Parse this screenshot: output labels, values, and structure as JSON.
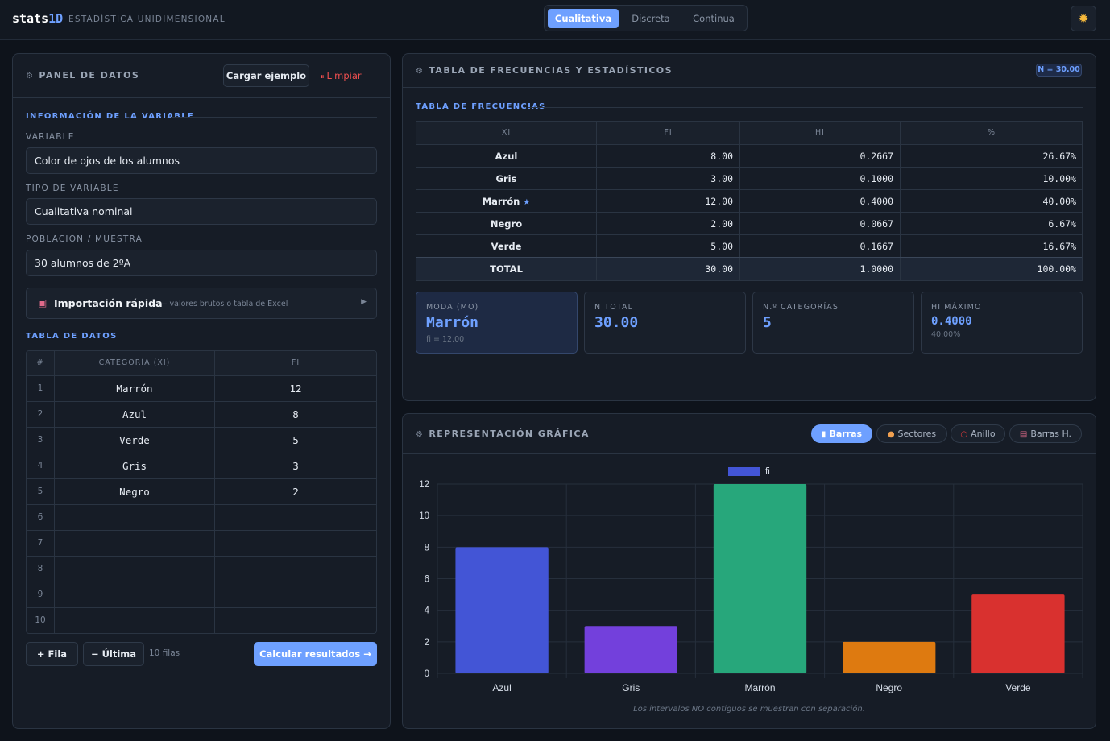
{
  "header": {
    "brand_a": "stats",
    "brand_b": "1D",
    "subtitle": "ESTADÍSTICA UNIDIMENSIONAL",
    "modes": [
      "Cualitativa",
      "Discreta",
      "Continua"
    ],
    "active_mode": "Cualitativa",
    "theme_icon": "sun-icon"
  },
  "left": {
    "title": "PANEL DE DATOS",
    "load_example": "Cargar ejemplo",
    "clear": "Limpiar",
    "section_info": "INFORMACIÓN DE LA VARIABLE",
    "variable_label": "VARIABLE",
    "variable_value": "Color de ojos de los alumnos",
    "type_label": "TIPO DE VARIABLE",
    "type_value": "Cualitativa nominal",
    "pop_label": "POBLACIÓN / MUESTRA",
    "pop_value": "30 alumnos de 2ºA",
    "quick_title": "Importación rápida",
    "quick_hint": "— valores brutos o tabla de Excel",
    "section_table": "TABLA DE DATOS",
    "table_headers": [
      "#",
      "CATEGORÍA (XI)",
      "FI"
    ],
    "rows": [
      {
        "n": "1",
        "cat": "Marrón",
        "fi": "12"
      },
      {
        "n": "2",
        "cat": "Azul",
        "fi": "8"
      },
      {
        "n": "3",
        "cat": "Verde",
        "fi": "5"
      },
      {
        "n": "4",
        "cat": "Gris",
        "fi": "3"
      },
      {
        "n": "5",
        "cat": "Negro",
        "fi": "2"
      },
      {
        "n": "6",
        "cat": "",
        "fi": ""
      },
      {
        "n": "7",
        "cat": "",
        "fi": ""
      },
      {
        "n": "8",
        "cat": "",
        "fi": ""
      },
      {
        "n": "9",
        "cat": "",
        "fi": ""
      },
      {
        "n": "10",
        "cat": "",
        "fi": ""
      }
    ],
    "add_row": "+ Fila",
    "remove_last": "− Última",
    "row_count": "10 filas",
    "calculate": "Calcular resultados →"
  },
  "freq": {
    "title": "TABLA DE FRECUENCIAS Y ESTADÍSTICOS",
    "n_badge": "N = 30.00",
    "section": "TABLA DE FRECUENCIAS",
    "headers": [
      "XI",
      "FI",
      "HI",
      "%"
    ],
    "rows": [
      {
        "xi": "Azul",
        "fi": "8.00",
        "hi": "0.2667",
        "pct": "26.67%",
        "mode": false
      },
      {
        "xi": "Gris",
        "fi": "3.00",
        "hi": "0.1000",
        "pct": "10.00%",
        "mode": false
      },
      {
        "xi": "Marrón",
        "fi": "12.00",
        "hi": "0.4000",
        "pct": "40.00%",
        "mode": true
      },
      {
        "xi": "Negro",
        "fi": "2.00",
        "hi": "0.0667",
        "pct": "6.67%",
        "mode": false
      },
      {
        "xi": "Verde",
        "fi": "5.00",
        "hi": "0.1667",
        "pct": "16.67%",
        "mode": false
      }
    ],
    "total": {
      "xi": "TOTAL",
      "fi": "30.00",
      "hi": "1.0000",
      "pct": "100.00%"
    },
    "cards": [
      {
        "label": "MODA (MO)",
        "value": "Marrón",
        "sub": "fi = 12.00"
      },
      {
        "label": "N TOTAL",
        "value": "30.00",
        "sub": ""
      },
      {
        "label": "N.º CATEGORÍAS",
        "value": "5",
        "sub": ""
      },
      {
        "label": "HI MÁXIMO",
        "value": "0.4000",
        "sub": "40.00%"
      }
    ]
  },
  "graph": {
    "title": "REPRESENTACIÓN GRÁFICA",
    "tabs": [
      "Barras",
      "Sectores",
      "Anillo",
      "Barras H."
    ],
    "active_tab": "Barras",
    "note": "Los intervalos NO contiguos se muestran con separación."
  },
  "chart_data": {
    "type": "bar",
    "categories": [
      "Azul",
      "Gris",
      "Marrón",
      "Negro",
      "Verde"
    ],
    "series": [
      {
        "name": "fi",
        "values": [
          8,
          3,
          12,
          2,
          5
        ]
      }
    ],
    "colors": [
      "#4355d6",
      "#7340dc",
      "#27a77b",
      "#de7a10",
      "#d9312f"
    ],
    "legend_color": "#4355d6",
    "ylim": [
      0,
      12
    ],
    "yticks": [
      "0",
      "2",
      "4",
      "6",
      "8",
      "10",
      "12"
    ],
    "grid": true,
    "legend_position": "top"
  }
}
